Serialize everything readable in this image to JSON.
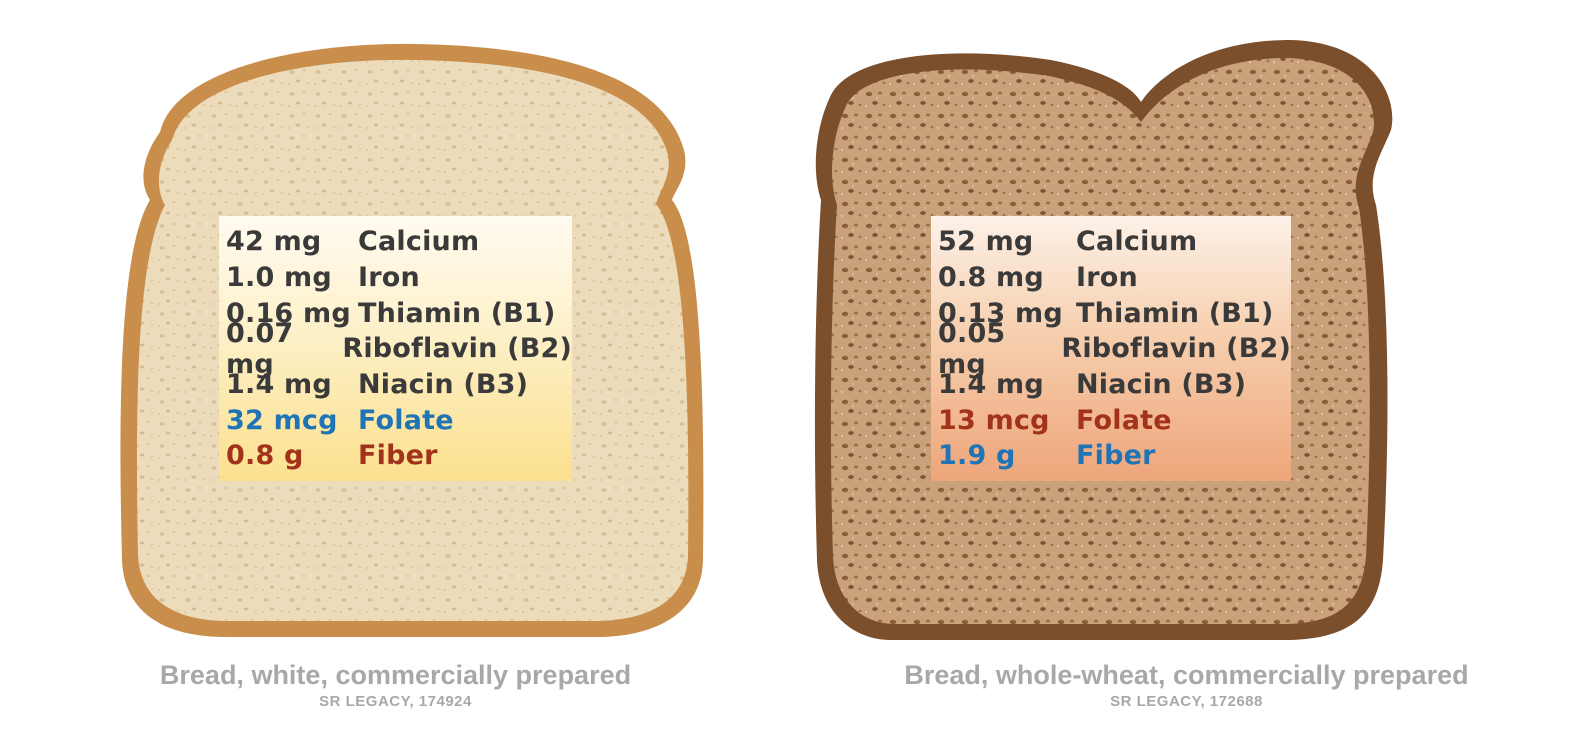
{
  "colors": {
    "default_text": "#3a3a3a",
    "highlight_blue": "#1f74b6",
    "highlight_red": "#a2321a",
    "caption": "#a8a8a8"
  },
  "white": {
    "caption": "Bread, white, commercially prepared",
    "source": "SR LEGACY, 174924",
    "nutrients": [
      {
        "amount": "42 mg",
        "name": "Calcium",
        "style": "default"
      },
      {
        "amount": "1.0 mg",
        "name": "Iron",
        "style": "default"
      },
      {
        "amount": "0.16 mg",
        "name": "Thiamin (B1)",
        "style": "default"
      },
      {
        "amount": "0.07 mg",
        "name": "Riboflavin (B2)",
        "style": "default"
      },
      {
        "amount": "1.4 mg",
        "name": "Niacin (B3)",
        "style": "default"
      },
      {
        "amount": "32 mcg",
        "name": "Folate",
        "style": "blue"
      },
      {
        "amount": "0.8 g",
        "name": "Fiber",
        "style": "red"
      }
    ]
  },
  "wheat": {
    "caption": "Bread, whole-wheat, commercially prepared",
    "source": "SR LEGACY, 172688",
    "nutrients": [
      {
        "amount": "52 mg",
        "name": "Calcium",
        "style": "default"
      },
      {
        "amount": "0.8 mg",
        "name": "Iron",
        "style": "default"
      },
      {
        "amount": "0.13 mg",
        "name": "Thiamin (B1)",
        "style": "default"
      },
      {
        "amount": "0.05 mg",
        "name": "Riboflavin (B2)",
        "style": "default"
      },
      {
        "amount": "1.4 mg",
        "name": "Niacin (B3)",
        "style": "default"
      },
      {
        "amount": "13 mcg",
        "name": "Folate",
        "style": "red"
      },
      {
        "amount": "1.9 g",
        "name": "Fiber",
        "style": "blue"
      }
    ]
  }
}
